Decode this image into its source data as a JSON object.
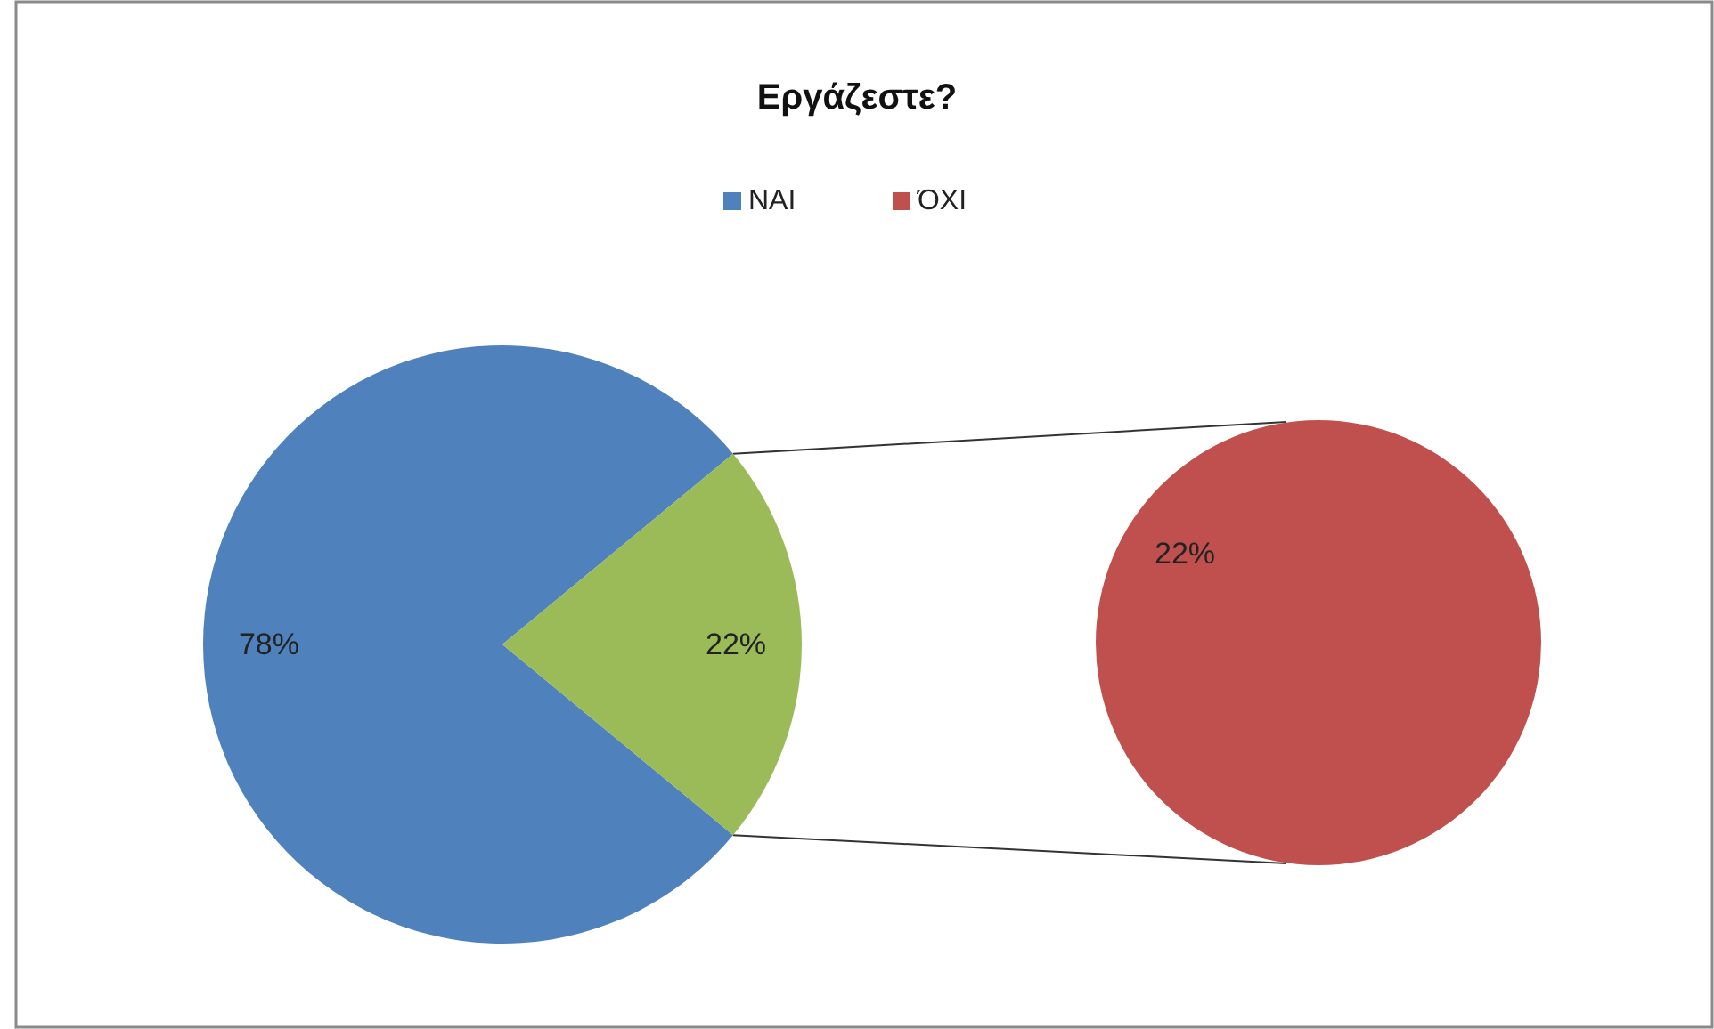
{
  "chart_data": [
    {
      "type": "pie",
      "title": "Εργάζεστε?",
      "categories": [
        "ΝΑΙ",
        null
      ],
      "values": [
        78,
        22
      ],
      "colors": [
        "#4f81bd",
        "#9bbb59"
      ],
      "value_labels": [
        "78%",
        "22%"
      ],
      "legend": "top"
    },
    {
      "type": "pie",
      "categories": [
        "ΌΧΙ"
      ],
      "values": [
        22
      ],
      "colors": [
        "#c0504d"
      ],
      "value_labels": [
        "22%"
      ],
      "legend": "top"
    }
  ]
}
